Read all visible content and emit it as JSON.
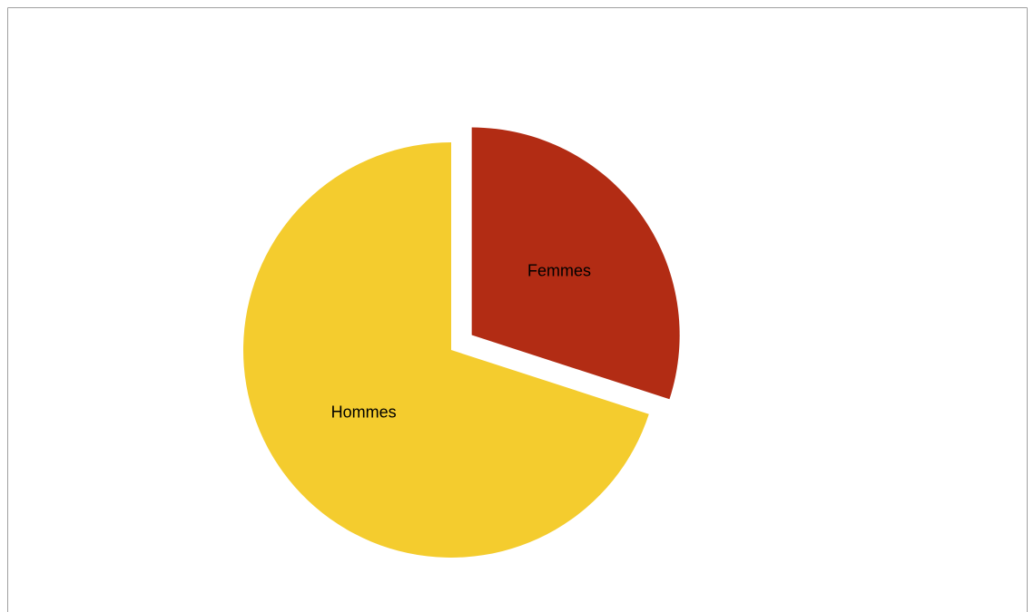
{
  "chart_data": {
    "type": "pie",
    "categories": [
      "Femmes",
      "Hommes"
    ],
    "values": [
      30,
      70
    ],
    "colors": [
      "#b22c14",
      "#f4cc2e"
    ],
    "explode": [
      true,
      false
    ]
  }
}
